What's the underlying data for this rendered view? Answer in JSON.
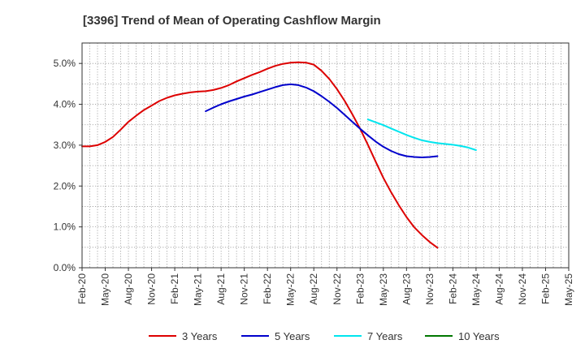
{
  "chart_data": {
    "type": "line",
    "title": "[3396]  Trend of Mean of Operating Cashflow Margin",
    "xlabel": "",
    "ylabel": "",
    "ylim": [
      0,
      5.5
    ],
    "yticks": [
      0,
      1,
      2,
      3,
      4,
      5
    ],
    "ytick_labels": [
      "0.0%",
      "1.0%",
      "2.0%",
      "3.0%",
      "4.0%",
      "5.0%"
    ],
    "x_labels": [
      "Feb-20",
      "May-20",
      "Aug-20",
      "Nov-20",
      "Feb-21",
      "May-21",
      "Aug-21",
      "Nov-21",
      "Feb-22",
      "May-22",
      "Aug-22",
      "Nov-22",
      "Feb-23",
      "May-23",
      "Aug-23",
      "Nov-23",
      "Feb-24",
      "May-24",
      "Aug-24",
      "Nov-24",
      "Feb-25",
      "May-25"
    ],
    "grid": true,
    "legend_position": "bottom",
    "series": [
      {
        "name": "3 Years",
        "color": "#dd0000",
        "start_index": 0,
        "values": [
          2.97,
          2.97,
          3.0,
          3.08,
          3.2,
          3.38,
          3.57,
          3.72,
          3.86,
          3.97,
          4.08,
          4.16,
          4.22,
          4.26,
          4.29,
          4.31,
          4.32,
          4.35,
          4.4,
          4.47,
          4.56,
          4.64,
          4.72,
          4.79,
          4.87,
          4.94,
          4.99,
          5.02,
          5.03,
          5.02,
          4.97,
          4.82,
          4.62,
          4.37,
          4.08,
          3.75,
          3.4,
          3.01,
          2.6,
          2.2,
          1.85,
          1.53,
          1.24,
          0.99,
          0.8,
          0.63,
          0.49
        ]
      },
      {
        "name": "5 Years",
        "color": "#0000cc",
        "start_index": 16,
        "values": [
          3.83,
          3.92,
          4.0,
          4.07,
          4.13,
          4.19,
          4.24,
          4.3,
          4.36,
          4.42,
          4.47,
          4.49,
          4.47,
          4.41,
          4.32,
          4.2,
          4.06,
          3.91,
          3.74,
          3.57,
          3.4,
          3.24,
          3.09,
          2.96,
          2.86,
          2.78,
          2.73,
          2.71,
          2.7,
          2.71,
          2.73
        ]
      },
      {
        "name": "7 Years",
        "color": "#00e5ee",
        "start_index": 37,
        "values": [
          3.63,
          3.56,
          3.49,
          3.41,
          3.33,
          3.25,
          3.18,
          3.12,
          3.08,
          3.05,
          3.03,
          3.01,
          2.98,
          2.94,
          2.88
        ]
      },
      {
        "name": "10 Years",
        "color": "#007700",
        "start_index": 0,
        "values": []
      }
    ]
  }
}
